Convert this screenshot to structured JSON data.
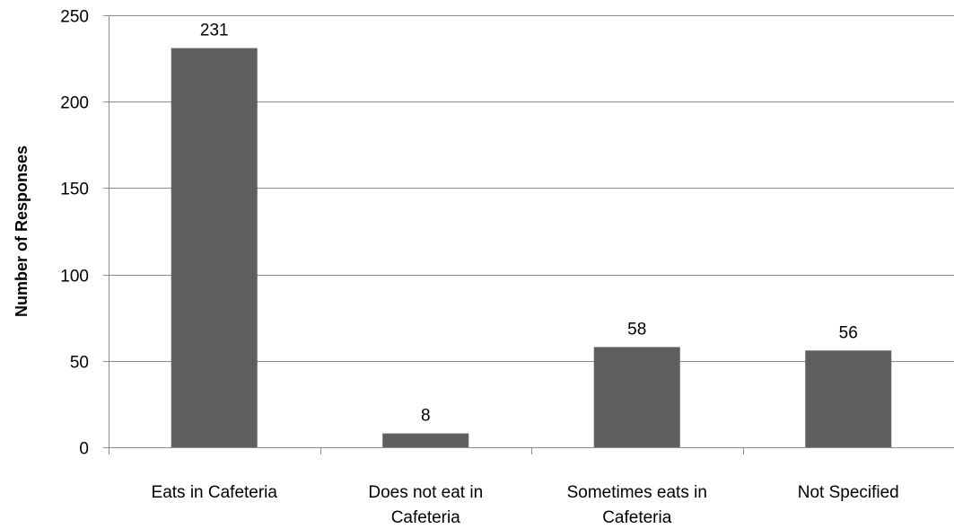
{
  "chart_data": {
    "type": "bar",
    "categories": [
      [
        "Eats in Cafeteria"
      ],
      [
        "Does not eat in",
        "Cafeteria"
      ],
      [
        "Sometimes eats in",
        "Cafeteria"
      ],
      [
        "Not Specified"
      ]
    ],
    "values": [
      231,
      8,
      58,
      56
    ],
    "data_labels": [
      "231",
      "8",
      "58",
      "56"
    ],
    "ylabel": "Number of Responses",
    "xlabel": "",
    "title": "",
    "ylim": [
      0,
      250
    ],
    "yticks": [
      0,
      50,
      100,
      150,
      200,
      250
    ],
    "grid": true,
    "legend": "none",
    "colors": {
      "bar": "#5f5f5f",
      "grid": "#8c8c8c",
      "axis": "#8c8c8c"
    }
  }
}
